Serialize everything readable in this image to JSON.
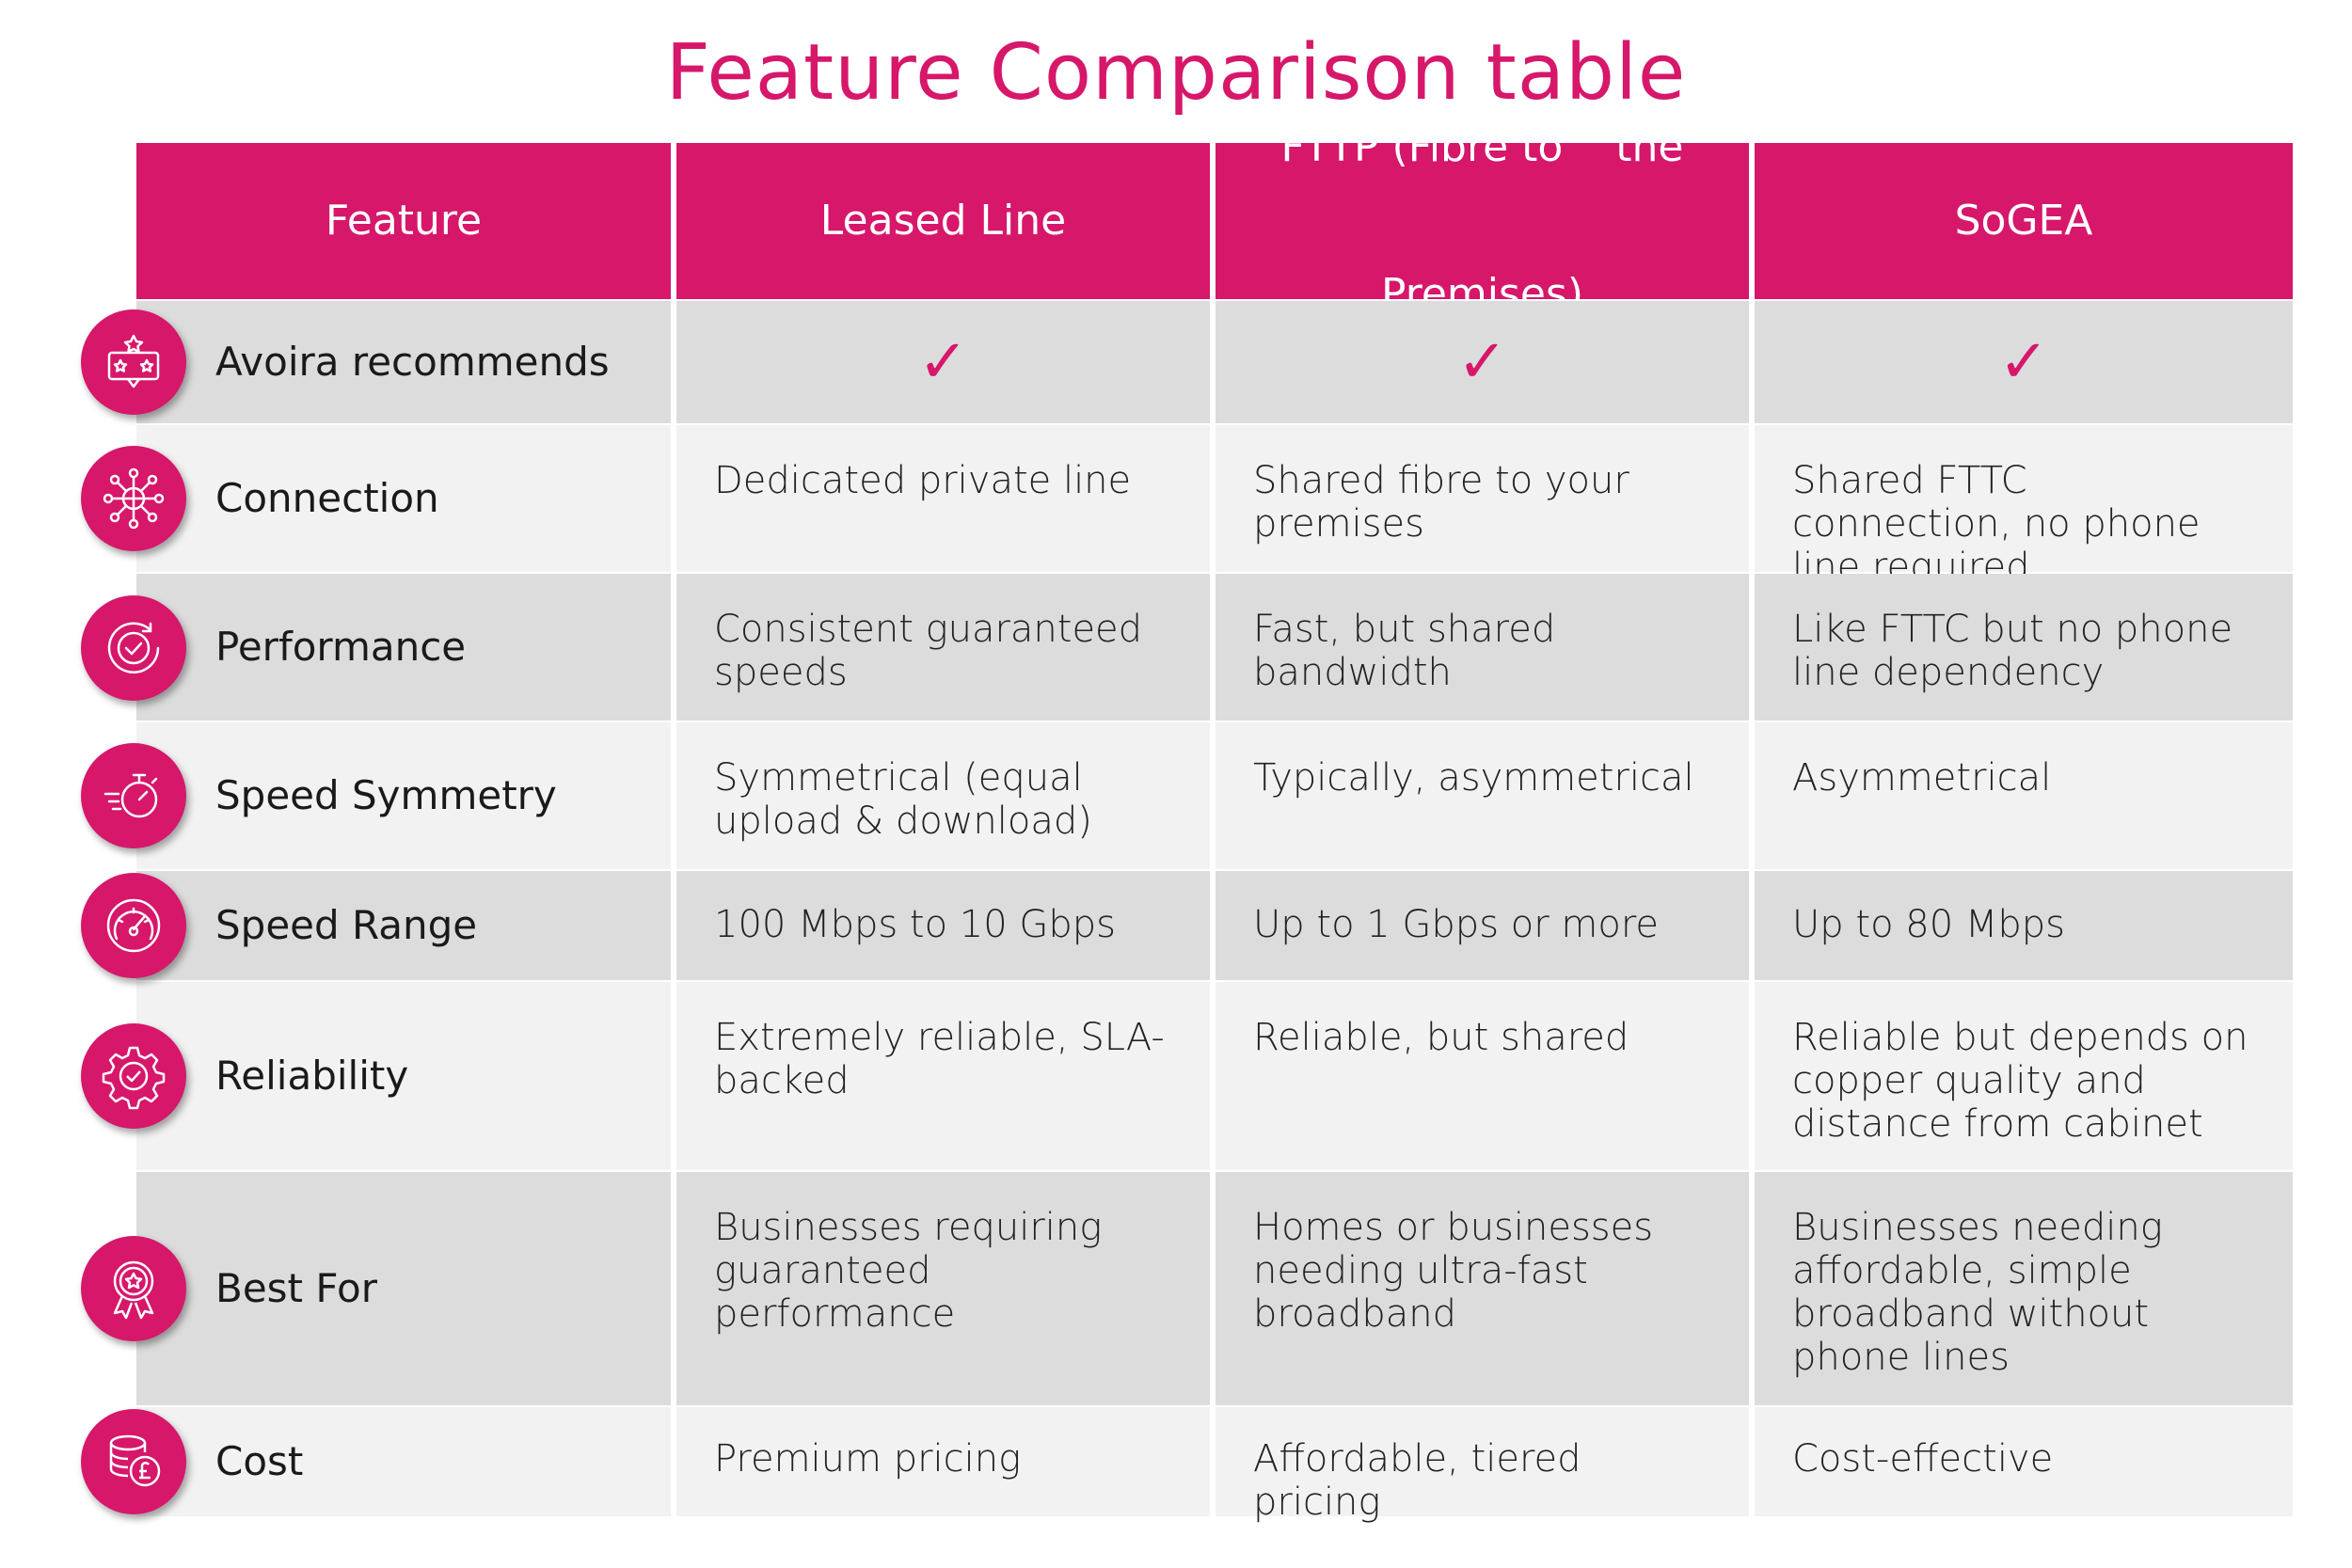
{
  "title": "Feature Comparison table",
  "headers": [
    "Feature",
    "Leased Line",
    "FTTP (Fibre to    the Premises)",
    "SoGEA"
  ],
  "header_lines": {
    "fttp_line1": "FTTP (Fibre to    the",
    "fttp_line2": "Premises)"
  },
  "check_mark": "✓",
  "colors": {
    "accent": "#d6176a",
    "row_gray": "#dcdcdc",
    "row_light": "#f2f2f2"
  },
  "rows": [
    {
      "icon": "award-stars-icon",
      "feature": "Avoira recommends",
      "values": [
        "✓",
        "✓",
        "✓"
      ]
    },
    {
      "icon": "network-globe-icon",
      "feature": "Connection",
      "values": [
        "Dedicated private line",
        "Shared fibre to your premises",
        "Shared FTTC connection, no phone line required"
      ]
    },
    {
      "icon": "performance-check-icon",
      "feature": "Performance",
      "values": [
        "Consistent guaranteed speeds",
        "Fast, but shared bandwidth",
        "Like FTTC but no phone line dependency"
      ]
    },
    {
      "icon": "stopwatch-speed-icon",
      "feature": "Speed Symmetry",
      "values": [
        "Symmetrical (equal upload & download)",
        "Typically, asymmetrical",
        "Asymmetrical"
      ]
    },
    {
      "icon": "speedometer-icon",
      "feature": "Speed Range",
      "values": [
        "100 Mbps to 10 Gbps",
        "Up to 1 Gbps or more",
        "Up to 80 Mbps"
      ]
    },
    {
      "icon": "gear-check-icon",
      "feature": "Reliability",
      "values": [
        "Extremely reliable, SLA-backed",
        "Reliable, but shared",
        "Reliable but depends on copper quality and distance from cabinet"
      ]
    },
    {
      "icon": "ribbon-award-icon",
      "feature": "Best For",
      "values": [
        "Businesses requiring guaranteed performance",
        "Homes or businesses needing ultra-fast broadband",
        "Businesses needing affordable, simple broadband without phone lines"
      ]
    },
    {
      "icon": "coins-pound-icon",
      "feature": "Cost",
      "values": [
        "Premium pricing",
        "Affordable, tiered pricing",
        "Cost-effective"
      ]
    }
  ]
}
